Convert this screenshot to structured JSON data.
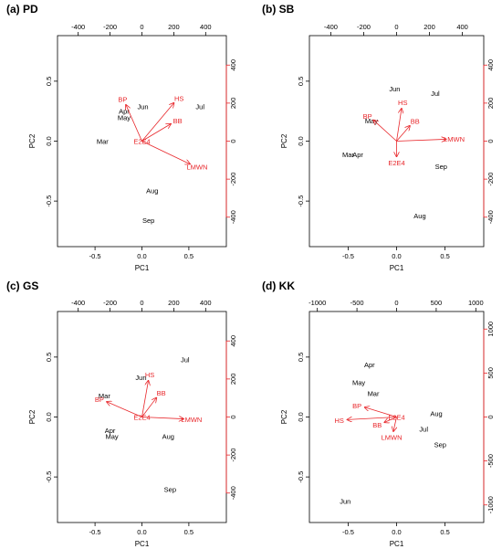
{
  "chart_data": [
    {
      "type": "scatter",
      "title": "(a) PD",
      "xlabel": "PC1",
      "ylabel": "PC2",
      "xlim": [
        -0.9,
        0.9
      ],
      "ylim": [
        -0.88,
        0.88
      ],
      "xticks": [
        -0.5,
        0.0,
        0.5
      ],
      "yticks": [
        -0.5,
        0.0,
        0.5
      ],
      "toplim": [
        -530,
        530
      ],
      "topticks": [
        -400,
        -200,
        0,
        200,
        400
      ],
      "rightlim": [
        -555,
        555
      ],
      "rightticks": [
        -400,
        -200,
        0,
        200,
        400
      ],
      "points": [
        {
          "label": "Apr",
          "x": -0.19,
          "y": 0.25
        },
        {
          "label": "May",
          "x": -0.19,
          "y": 0.2
        },
        {
          "label": "Jun",
          "x": 0.01,
          "y": 0.29
        },
        {
          "label": "Jul",
          "x": 0.62,
          "y": 0.29
        },
        {
          "label": "Mar",
          "x": -0.42,
          "y": 0.0
        },
        {
          "label": "Aug",
          "x": 0.11,
          "y": -0.41
        },
        {
          "label": "Sep",
          "x": 0.07,
          "y": -0.66
        }
      ],
      "vectors": [
        {
          "label": "BP",
          "x": -100,
          "y": 190
        },
        {
          "label": "HS",
          "x": 200,
          "y": 200
        },
        {
          "label": "BB",
          "x": 180,
          "y": 90
        },
        {
          "label": "LMWN",
          "x": 300,
          "y": -120
        },
        {
          "label": "E2E4",
          "x": 0,
          "y": 0
        }
      ]
    },
    {
      "type": "scatter",
      "title": "(b) SB",
      "xlabel": "PC1",
      "ylabel": "PC2",
      "xlim": [
        -0.9,
        0.9
      ],
      "ylim": [
        -0.88,
        0.88
      ],
      "xticks": [
        -0.5,
        0.0,
        0.5
      ],
      "yticks": [
        -0.5,
        0.0,
        0.5
      ],
      "toplim": [
        -530,
        530
      ],
      "topticks": [
        -400,
        -200,
        0,
        200,
        400
      ],
      "rightlim": [
        -555,
        555
      ],
      "rightticks": [
        -400,
        -200,
        0,
        200,
        400
      ],
      "points": [
        {
          "label": "Jun",
          "x": -0.02,
          "y": 0.44
        },
        {
          "label": "Jul",
          "x": 0.4,
          "y": 0.4
        },
        {
          "label": "May",
          "x": -0.26,
          "y": 0.17
        },
        {
          "label": "Mar",
          "x": -0.5,
          "y": -0.11
        },
        {
          "label": "Apr",
          "x": -0.4,
          "y": -0.11
        },
        {
          "label": "Sep",
          "x": 0.46,
          "y": -0.21
        },
        {
          "label": "Aug",
          "x": 0.24,
          "y": -0.62
        }
      ],
      "vectors": [
        {
          "label": "BP",
          "x": -140,
          "y": 110
        },
        {
          "label": "HS",
          "x": 30,
          "y": 170
        },
        {
          "label": "BB",
          "x": 80,
          "y": 80
        },
        {
          "label": "LMWN",
          "x": 300,
          "y": 10
        },
        {
          "label": "E2E4",
          "x": 0,
          "y": -80
        }
      ]
    },
    {
      "type": "scatter",
      "title": "(c) GS",
      "xlabel": "PC1",
      "ylabel": "PC2",
      "xlim": [
        -0.9,
        0.9
      ],
      "ylim": [
        -0.88,
        0.88
      ],
      "xticks": [
        -0.5,
        0.0,
        0.5
      ],
      "yticks": [
        -0.5,
        0.0,
        0.5
      ],
      "toplim": [
        -530,
        530
      ],
      "topticks": [
        -400,
        -200,
        0,
        200,
        400
      ],
      "rightlim": [
        -555,
        555
      ],
      "rightticks": [
        -400,
        -200,
        0,
        200,
        400
      ],
      "points": [
        {
          "label": "Jul",
          "x": 0.46,
          "y": 0.48
        },
        {
          "label": "Jun",
          "x": -0.01,
          "y": 0.33
        },
        {
          "label": "Mar",
          "x": -0.4,
          "y": 0.18
        },
        {
          "label": "Apr",
          "x": -0.34,
          "y": -0.11
        },
        {
          "label": "May",
          "x": -0.32,
          "y": -0.16
        },
        {
          "label": "Aug",
          "x": 0.28,
          "y": -0.16
        },
        {
          "label": "Sep",
          "x": 0.3,
          "y": -0.6
        }
      ],
      "vectors": [
        {
          "label": "BP",
          "x": -220,
          "y": 80
        },
        {
          "label": "HS",
          "x": 40,
          "y": 190
        },
        {
          "label": "BB",
          "x": 90,
          "y": 100
        },
        {
          "label": "LMWN",
          "x": 260,
          "y": -10
        },
        {
          "label": "E2E4",
          "x": 0,
          "y": 0
        }
      ]
    },
    {
      "type": "scatter",
      "title": "(d) KK",
      "xlabel": "PC1",
      "ylabel": "PC2",
      "xlim": [
        -0.9,
        0.9
      ],
      "ylim": [
        -0.88,
        0.88
      ],
      "xticks": [
        -0.5,
        0.0,
        0.5
      ],
      "yticks": [
        -0.5,
        0.0,
        0.5
      ],
      "toplim": [
        -1100,
        1100
      ],
      "topticks": [
        -1000,
        -500,
        0,
        500,
        1000
      ],
      "rightlim": [
        -1200,
        1200
      ],
      "rightticks": [
        -1000,
        -500,
        0,
        500,
        1000
      ],
      "points": [
        {
          "label": "Apr",
          "x": -0.28,
          "y": 0.44
        },
        {
          "label": "May",
          "x": -0.39,
          "y": 0.29
        },
        {
          "label": "Mar",
          "x": -0.24,
          "y": 0.2
        },
        {
          "label": "Aug",
          "x": 0.41,
          "y": 0.03
        },
        {
          "label": "Jul",
          "x": 0.28,
          "y": -0.1
        },
        {
          "label": "Sep",
          "x": 0.45,
          "y": -0.23
        },
        {
          "label": "Jun",
          "x": -0.53,
          "y": -0.7
        }
      ],
      "vectors": [
        {
          "label": "BP",
          "x": -400,
          "y": 110
        },
        {
          "label": "HS",
          "x": -620,
          "y": -30
        },
        {
          "label": "BB",
          "x": -150,
          "y": -60
        },
        {
          "label": "LMWN",
          "x": -40,
          "y": -160
        },
        {
          "label": "E2E4",
          "x": 0,
          "y": 0
        }
      ]
    }
  ]
}
